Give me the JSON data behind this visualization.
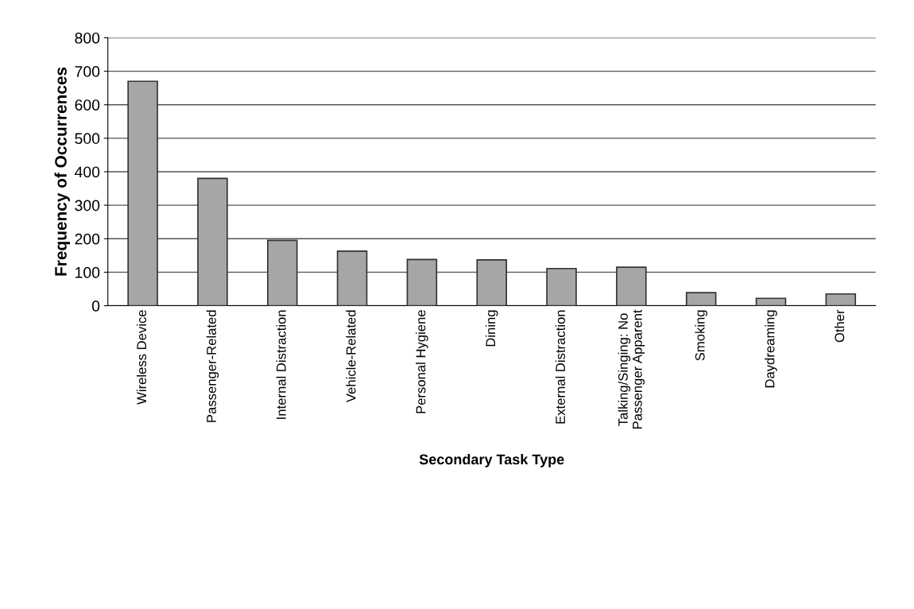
{
  "chart_data": {
    "type": "bar",
    "xlabel": "Secondary Task Type",
    "ylabel": "Frequency of Occurrences",
    "categories": [
      "Wireless Device",
      "Passenger-Related",
      "Internal Distraction",
      "Vehicle-Related",
      "Personal Hygiene",
      "Dining",
      "External Distraction",
      "Talking/Singing: No Passenger Apparent",
      "Smoking",
      "Daydreaming",
      "Other"
    ],
    "values": [
      670,
      380,
      195,
      163,
      138,
      137,
      111,
      115,
      39,
      22,
      35
    ],
    "color": "#a6a6a6",
    "ylim": [
      0,
      800
    ],
    "yticks": [
      0,
      100,
      200,
      300,
      400,
      500,
      600,
      700,
      800
    ],
    "grid": "y",
    "legend": false
  }
}
